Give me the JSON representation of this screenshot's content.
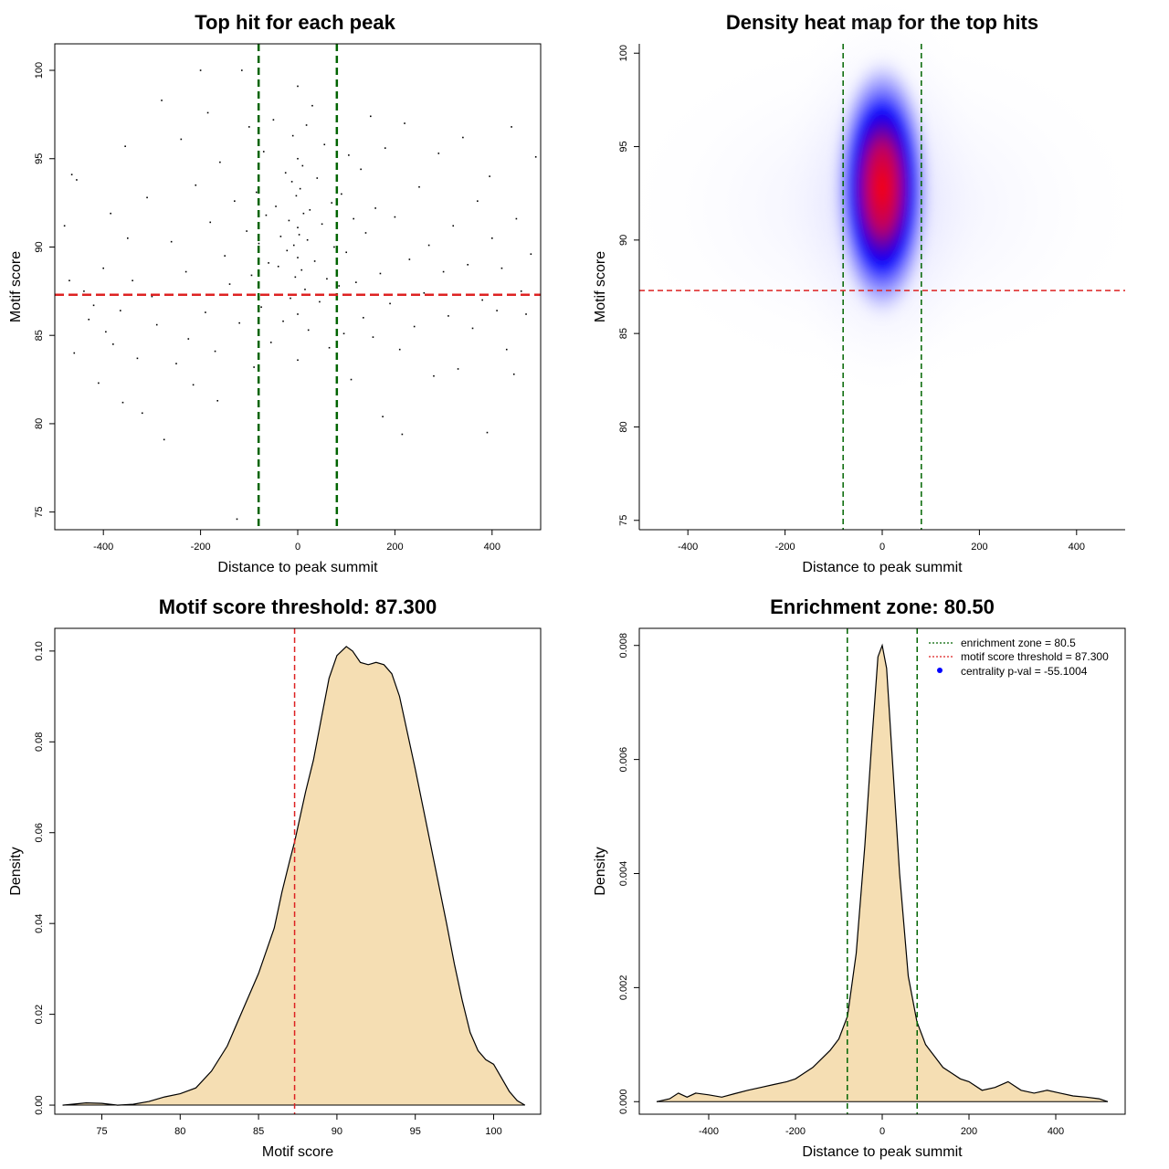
{
  "colors": {
    "scatter_point": "#000000",
    "threshold_line": "#dd2222",
    "zone_line": "#006400",
    "density_fill": "#f5deb3",
    "heat_low": "#ffffff",
    "heat_mid": "#0000ff",
    "heat_high": "#ff0000",
    "legend_dot": "#0000ff"
  },
  "chart_data": [
    {
      "type": "scatter",
      "title": "Top hit for each peak",
      "xlabel": "Distance to peak summit",
      "ylabel": "Motif score",
      "xlim": [
        -500,
        500
      ],
      "ylim": [
        74,
        101.5
      ],
      "xticks": [
        -400,
        -200,
        0,
        200,
        400
      ],
      "yticks": [
        75,
        80,
        85,
        90,
        95,
        100
      ],
      "xtick_labels": [
        "-400",
        "-200",
        "0",
        "200",
        "400"
      ],
      "ytick_labels": [
        "75",
        "80",
        "85",
        "90",
        "95",
        "100"
      ],
      "vlines": [
        -80.5,
        80.5
      ],
      "hline": 87.3,
      "points": [
        [
          -480,
          91.2
        ],
        [
          -470,
          88.1
        ],
        [
          -465,
          94.1
        ],
        [
          -460,
          84.0
        ],
        [
          -455,
          93.8
        ],
        [
          -440,
          87.5
        ],
        [
          -430,
          85.9
        ],
        [
          -420,
          86.7
        ],
        [
          -410,
          82.3
        ],
        [
          -400,
          88.8
        ],
        [
          -395,
          85.2
        ],
        [
          -385,
          91.9
        ],
        [
          -380,
          84.5
        ],
        [
          -365,
          86.4
        ],
        [
          -360,
          81.2
        ],
        [
          -355,
          95.7
        ],
        [
          -350,
          90.5
        ],
        [
          -340,
          88.1
        ],
        [
          -330,
          83.7
        ],
        [
          -320,
          80.6
        ],
        [
          -310,
          92.8
        ],
        [
          -300,
          87.2
        ],
        [
          -290,
          85.6
        ],
        [
          -280,
          98.3
        ],
        [
          -275,
          79.1
        ],
        [
          -260,
          90.3
        ],
        [
          -250,
          83.4
        ],
        [
          -240,
          96.1
        ],
        [
          -230,
          88.6
        ],
        [
          -225,
          84.8
        ],
        [
          -215,
          82.2
        ],
        [
          -210,
          93.5
        ],
        [
          -200,
          100.0
        ],
        [
          -190,
          86.3
        ],
        [
          -185,
          97.6
        ],
        [
          -180,
          91.4
        ],
        [
          -170,
          84.1
        ],
        [
          -165,
          81.3
        ],
        [
          -160,
          94.8
        ],
        [
          -150,
          89.5
        ],
        [
          -140,
          87.9
        ],
        [
          -130,
          92.6
        ],
        [
          -125,
          74.6
        ],
        [
          -120,
          85.7
        ],
        [
          -115,
          100.0
        ],
        [
          -105,
          90.9
        ],
        [
          -100,
          96.8
        ],
        [
          -95,
          88.4
        ],
        [
          -90,
          83.2
        ],
        [
          -85,
          93.1
        ],
        [
          -80,
          90.2
        ],
        [
          -75,
          86.6
        ],
        [
          -70,
          95.4
        ],
        [
          -65,
          91.8
        ],
        [
          -60,
          89.1
        ],
        [
          -55,
          84.6
        ],
        [
          -50,
          97.2
        ],
        [
          -45,
          92.3
        ],
        [
          -40,
          88.9
        ],
        [
          -35,
          90.6
        ],
        [
          -30,
          85.8
        ],
        [
          -25,
          94.2
        ],
        [
          -22,
          89.8
        ],
        [
          -18,
          91.5
        ],
        [
          -15,
          87.1
        ],
        [
          -12,
          93.7
        ],
        [
          -10,
          96.3
        ],
        [
          -8,
          90.1
        ],
        [
          -5,
          88.3
        ],
        [
          -3,
          92.9
        ],
        [
          0,
          89.4
        ],
        [
          0,
          91.1
        ],
        [
          0,
          95.0
        ],
        [
          0,
          86.2
        ],
        [
          0,
          99.1
        ],
        [
          0,
          83.6
        ],
        [
          3,
          90.7
        ],
        [
          5,
          93.3
        ],
        [
          8,
          88.7
        ],
        [
          10,
          94.6
        ],
        [
          12,
          91.9
        ],
        [
          15,
          87.6
        ],
        [
          18,
          96.9
        ],
        [
          20,
          90.4
        ],
        [
          22,
          85.3
        ],
        [
          25,
          92.1
        ],
        [
          30,
          98.0
        ],
        [
          35,
          89.2
        ],
        [
          40,
          93.9
        ],
        [
          45,
          86.9
        ],
        [
          50,
          91.3
        ],
        [
          55,
          95.8
        ],
        [
          60,
          88.2
        ],
        [
          65,
          84.3
        ],
        [
          70,
          92.5
        ],
        [
          75,
          90.0
        ],
        [
          80,
          97.1
        ],
        [
          85,
          87.8
        ],
        [
          90,
          93.0
        ],
        [
          95,
          85.1
        ],
        [
          100,
          89.7
        ],
        [
          105,
          95.2
        ],
        [
          110,
          82.5
        ],
        [
          115,
          91.6
        ],
        [
          120,
          88.0
        ],
        [
          130,
          94.4
        ],
        [
          135,
          86.0
        ],
        [
          140,
          90.8
        ],
        [
          150,
          97.4
        ],
        [
          155,
          84.9
        ],
        [
          160,
          92.2
        ],
        [
          170,
          88.5
        ],
        [
          175,
          80.4
        ],
        [
          180,
          95.6
        ],
        [
          190,
          86.8
        ],
        [
          200,
          91.7
        ],
        [
          210,
          84.2
        ],
        [
          215,
          79.4
        ],
        [
          220,
          97.0
        ],
        [
          230,
          89.3
        ],
        [
          240,
          85.5
        ],
        [
          250,
          93.4
        ],
        [
          260,
          87.4
        ],
        [
          270,
          90.1
        ],
        [
          280,
          82.7
        ],
        [
          290,
          95.3
        ],
        [
          300,
          88.6
        ],
        [
          310,
          86.1
        ],
        [
          320,
          91.2
        ],
        [
          330,
          83.1
        ],
        [
          340,
          96.2
        ],
        [
          350,
          89.0
        ],
        [
          360,
          85.4
        ],
        [
          370,
          92.6
        ],
        [
          380,
          87.0
        ],
        [
          390,
          79.5
        ],
        [
          395,
          94.0
        ],
        [
          400,
          90.5
        ],
        [
          410,
          86.4
        ],
        [
          420,
          88.8
        ],
        [
          430,
          84.2
        ],
        [
          440,
          96.8
        ],
        [
          445,
          82.8
        ],
        [
          450,
          91.6
        ],
        [
          460,
          87.5
        ],
        [
          470,
          86.2
        ],
        [
          480,
          89.6
        ],
        [
          490,
          95.1
        ]
      ]
    },
    {
      "type": "heatmap",
      "title": "Density heat map for the top hits",
      "xlabel": "Distance to peak summit",
      "ylabel": "Motif score",
      "xlim": [
        -500,
        500
      ],
      "ylim": [
        74.5,
        100.5
      ],
      "xticks": [
        -400,
        -200,
        0,
        200,
        400
      ],
      "yticks": [
        75,
        80,
        85,
        90,
        95,
        100
      ],
      "xtick_labels": [
        "-400",
        "-200",
        "0",
        "200",
        "400"
      ],
      "ytick_labels": [
        "75",
        "80",
        "85",
        "90",
        "95",
        "100"
      ],
      "peak": {
        "x": 0,
        "y": 92.8
      },
      "vlines": [
        -80.5,
        80.5
      ],
      "hline": 87.3
    },
    {
      "type": "area",
      "title": "Motif score threshold: 87.300",
      "xlabel": "Motif score",
      "ylabel": "Density",
      "xlim": [
        72,
        103
      ],
      "ylim": [
        -0.002,
        0.105
      ],
      "xticks": [
        75,
        80,
        85,
        90,
        95,
        100
      ],
      "yticks": [
        0.0,
        0.02,
        0.04,
        0.06,
        0.08,
        0.1
      ],
      "xtick_labels": [
        "75",
        "80",
        "85",
        "90",
        "95",
        "100"
      ],
      "ytick_labels": [
        "0.00",
        "0.02",
        "0.04",
        "0.06",
        "0.08",
        "0.10"
      ],
      "vline": 87.3,
      "x": [
        72.5,
        74.0,
        75.0,
        76.0,
        77.0,
        78.0,
        79.0,
        80.0,
        81.0,
        82.0,
        83.0,
        84.0,
        85.0,
        86.0,
        86.5,
        87.0,
        87.3,
        88.0,
        88.5,
        89.0,
        89.5,
        90.0,
        90.6,
        91.0,
        91.5,
        92.0,
        92.5,
        93.0,
        93.5,
        94.0,
        94.5,
        95.0,
        96.0,
        97.0,
        97.5,
        98.0,
        98.5,
        99.0,
        99.5,
        100.0,
        100.5,
        101.0,
        101.5,
        102.0
      ],
      "y": [
        0.0,
        0.0005,
        0.0004,
        0.0,
        0.0002,
        0.0008,
        0.0018,
        0.0025,
        0.0038,
        0.0075,
        0.013,
        0.021,
        0.029,
        0.039,
        0.047,
        0.054,
        0.058,
        0.069,
        0.076,
        0.085,
        0.094,
        0.099,
        0.101,
        0.1,
        0.0975,
        0.097,
        0.0975,
        0.097,
        0.095,
        0.09,
        0.082,
        0.074,
        0.057,
        0.04,
        0.031,
        0.023,
        0.016,
        0.012,
        0.01,
        0.009,
        0.006,
        0.003,
        0.001,
        0.0
      ]
    },
    {
      "type": "area",
      "title": "Enrichment zone: 80.50",
      "xlabel": "Distance to peak summit",
      "ylabel": "Density",
      "xlim": [
        -560,
        560
      ],
      "ylim": [
        -0.00022,
        0.0083
      ],
      "xticks": [
        -400,
        -200,
        0,
        200,
        400
      ],
      "yticks": [
        0.0,
        0.002,
        0.004,
        0.006,
        0.008
      ],
      "xtick_labels": [
        "-400",
        "-200",
        "0",
        "200",
        "400"
      ],
      "ytick_labels": [
        "0.000",
        "0.002",
        "0.004",
        "0.006",
        "0.008"
      ],
      "vlines": [
        -80.5,
        80.5
      ],
      "legend": {
        "position": "top-right",
        "entries": [
          "enrichment zone = 80.5",
          "motif score threshold = 87.300",
          "centrality p-val = -55.1004"
        ]
      },
      "x": [
        -520,
        -490,
        -470,
        -450,
        -430,
        -400,
        -370,
        -340,
        -310,
        -280,
        -250,
        -220,
        -200,
        -180,
        -160,
        -140,
        -120,
        -100,
        -80,
        -60,
        -40,
        -25,
        -10,
        0,
        10,
        25,
        40,
        60,
        80,
        100,
        120,
        140,
        160,
        180,
        200,
        230,
        260,
        290,
        320,
        350,
        380,
        410,
        440,
        470,
        500,
        520
      ],
      "y": [
        0.0,
        5e-05,
        0.00015,
        8e-05,
        0.00015,
        0.00012,
        8e-05,
        0.00014,
        0.0002,
        0.00025,
        0.0003,
        0.00035,
        0.0004,
        0.0005,
        0.0006,
        0.00075,
        0.0009,
        0.0011,
        0.0015,
        0.0026,
        0.0045,
        0.0062,
        0.0078,
        0.008,
        0.0076,
        0.0058,
        0.004,
        0.0022,
        0.0014,
        0.001,
        0.0008,
        0.0006,
        0.0005,
        0.0004,
        0.00035,
        0.0002,
        0.00025,
        0.00035,
        0.0002,
        0.00015,
        0.0002,
        0.00015,
        0.0001,
        8e-05,
        5e-05,
        0.0
      ]
    }
  ]
}
